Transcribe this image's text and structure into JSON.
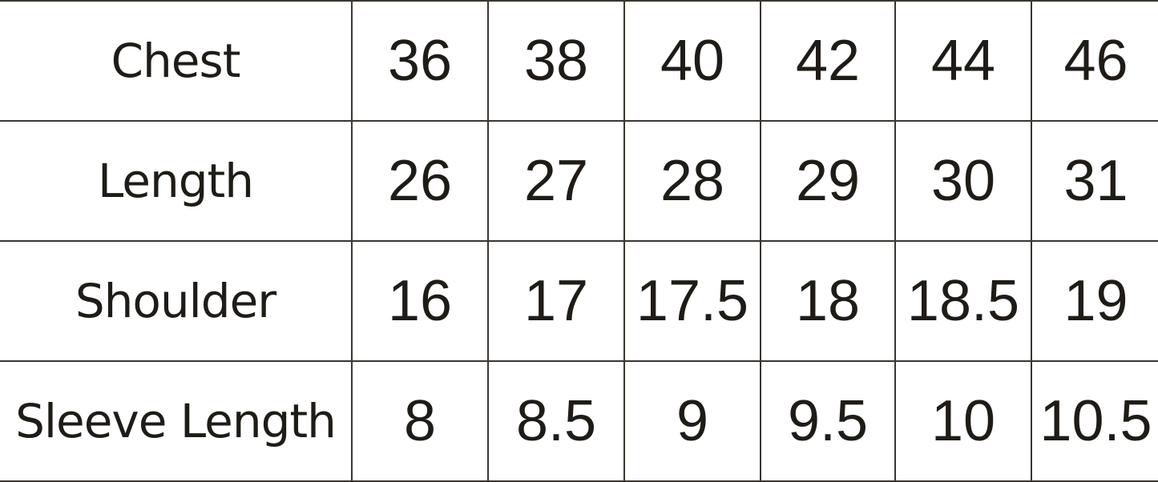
{
  "table": {
    "rows": [
      {
        "label": "Chest",
        "values": [
          "36",
          "38",
          "40",
          "42",
          "44",
          "46"
        ]
      },
      {
        "label": "Length",
        "values": [
          "26",
          "27",
          "28",
          "29",
          "30",
          "31"
        ]
      },
      {
        "label": "Shoulder",
        "values": [
          "16",
          "17",
          "17.5",
          "18",
          "18.5",
          "19"
        ]
      },
      {
        "label": "Sleeve Length",
        "values": [
          "8",
          "8.5",
          "9",
          "9.5",
          "10",
          "10.5"
        ]
      }
    ]
  }
}
